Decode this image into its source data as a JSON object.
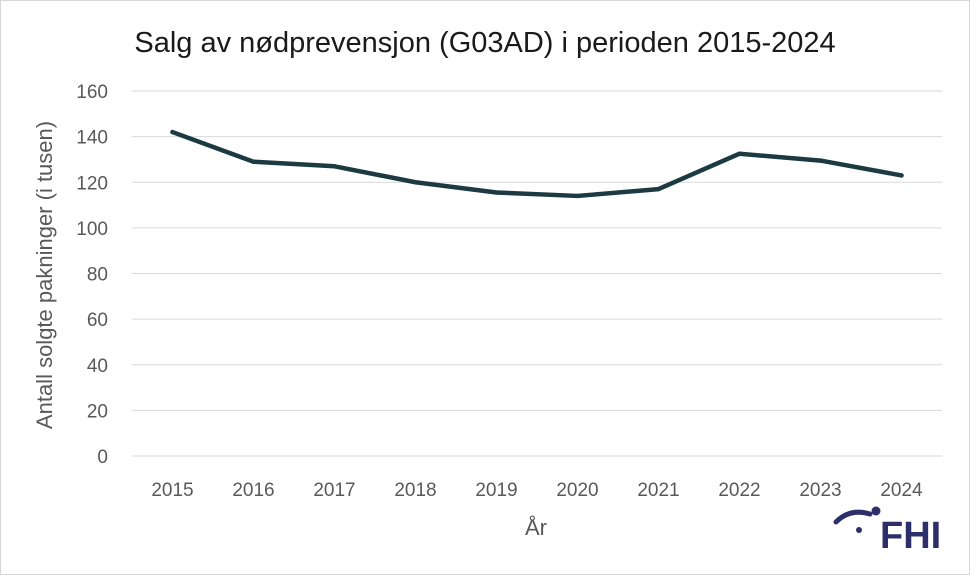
{
  "chart_data": {
    "type": "line",
    "title": "Salg av nødprevensjon (G03AD) i perioden 2015-2024",
    "xlabel": "År",
    "ylabel": "Antall solgte pakninger (i tusen)",
    "categories": [
      "2015",
      "2016",
      "2017",
      "2018",
      "2019",
      "2020",
      "2021",
      "2022",
      "2023",
      "2024"
    ],
    "series": [
      {
        "values": [
          142,
          129,
          127,
          120,
          115.5,
          114,
          117,
          132.5,
          129.5,
          123
        ]
      }
    ],
    "ylim": [
      0,
      160
    ],
    "yticks": [
      0,
      20,
      40,
      60,
      80,
      100,
      120,
      140,
      160
    ],
    "grid": true,
    "legend": "none",
    "colors": {
      "line": "#1c3a42",
      "grid": "#d9d9d9",
      "text": "#595959"
    }
  },
  "logo": {
    "text": "FHI",
    "color": "#2d2f6b"
  }
}
